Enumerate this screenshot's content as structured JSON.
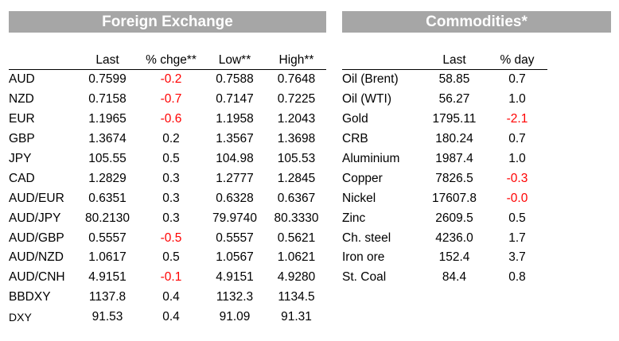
{
  "fx": {
    "title": "Foreign Exchange",
    "headers": [
      "",
      "Last",
      "% chge**",
      "Low**",
      "High**"
    ],
    "rows": [
      {
        "name": "AUD",
        "last": "0.7599",
        "chg": "-0.2",
        "low": "0.7588",
        "high": "0.7648"
      },
      {
        "name": "NZD",
        "last": "0.7158",
        "chg": "-0.7",
        "low": "0.7147",
        "high": "0.7225"
      },
      {
        "name": "EUR",
        "last": "1.1965",
        "chg": "-0.6",
        "low": "1.1958",
        "high": "1.2043"
      },
      {
        "name": "GBP",
        "last": "1.3674",
        "chg": "0.2",
        "low": "1.3567",
        "high": "1.3698"
      },
      {
        "name": "JPY",
        "last": "105.55",
        "chg": "0.5",
        "low": "104.98",
        "high": "105.53"
      },
      {
        "name": "CAD",
        "last": "1.2829",
        "chg": "0.3",
        "low": "1.2777",
        "high": "1.2845"
      },
      {
        "name": "AUD/EUR",
        "last": "0.6351",
        "chg": "0.3",
        "low": "0.6328",
        "high": "0.6367"
      },
      {
        "name": "AUD/JPY",
        "last": "80.2130",
        "chg": "0.3",
        "low": "79.9740",
        "high": "80.3330"
      },
      {
        "name": "AUD/GBP",
        "last": "0.5557",
        "chg": "-0.5",
        "low": "0.5557",
        "high": "0.5621"
      },
      {
        "name": "AUD/NZD",
        "last": "1.0617",
        "chg": "0.5",
        "low": "1.0567",
        "high": "1.0621"
      },
      {
        "name": "AUD/CNH",
        "last": "4.9151",
        "chg": "-0.1",
        "low": "4.9151",
        "high": "4.9280"
      },
      {
        "name": "BBDXY",
        "last": "1137.8",
        "chg": "0.4",
        "low": "1132.3",
        "high": "1134.5"
      },
      {
        "name": "DXY",
        "last": "91.53",
        "chg": "0.4",
        "low": "91.09",
        "high": "91.31"
      }
    ]
  },
  "commodities": {
    "title": "Commodities*",
    "headers": [
      "",
      "Last",
      "% day"
    ],
    "rows": [
      {
        "name": "Oil (Brent)",
        "last": "58.85",
        "chg": "0.7"
      },
      {
        "name": "Oil (WTI)",
        "last": "56.27",
        "chg": "1.0"
      },
      {
        "name": "Gold",
        "last": "1795.11",
        "chg": "-2.1"
      },
      {
        "name": "CRB",
        "last": "180.24",
        "chg": "0.7"
      },
      {
        "name": "Aluminium",
        "last": "1987.4",
        "chg": "1.0"
      },
      {
        "name": "Copper",
        "last": "7826.5",
        "chg": "-0.3"
      },
      {
        "name": "Nickel",
        "last": "17607.8",
        "chg": "-0.0"
      },
      {
        "name": "Zinc",
        "last": "2609.5",
        "chg": "0.5"
      },
      {
        "name": "Ch. steel",
        "last": "4236.0",
        "chg": "1.7"
      },
      {
        "name": "Iron ore",
        "last": "152.4",
        "chg": "3.7"
      },
      {
        "name": "St. Coal",
        "last": "84.4",
        "chg": "0.8"
      }
    ]
  },
  "colors": {
    "banner_bg": "#a6a6a6",
    "negative": "#ff0000"
  }
}
